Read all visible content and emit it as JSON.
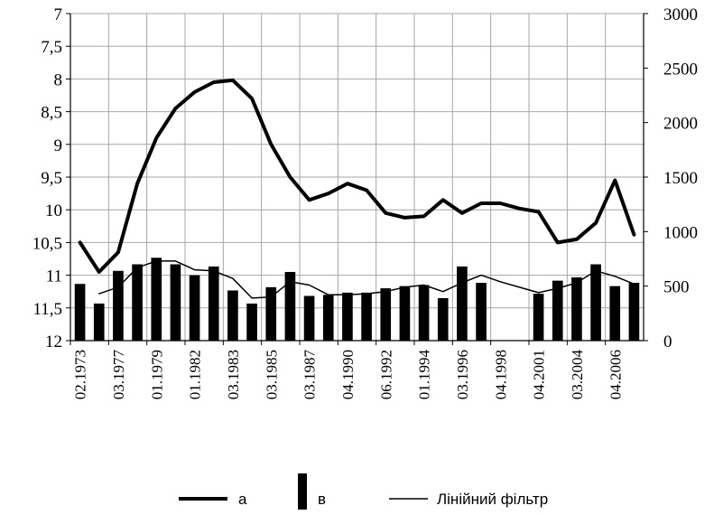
{
  "chart_data": {
    "type": "bar+line",
    "title": "",
    "xlabel": "",
    "ylabel_left": "",
    "ylabel_right": "",
    "x_tick_labels": [
      "02.1973",
      "03.1977",
      "01.1979",
      "01.1982",
      "03.1983",
      "03.1985",
      "03.1987",
      "04.1990",
      "06.1992",
      "01.1994",
      "03.1996",
      "04.1998",
      "04.2001",
      "03.2004",
      "04.2006"
    ],
    "left_axis": {
      "min": 7,
      "max": 12,
      "reversed": true,
      "step": 0.5,
      "tick_labels": [
        "7",
        "7,5",
        "8",
        "8,5",
        "9",
        "9,5",
        "10",
        "10,5",
        "11",
        "11,5",
        "12"
      ]
    },
    "right_axis": {
      "min": 0,
      "max": 3000,
      "step": 500,
      "tick_labels": [
        "0",
        "500",
        "1000",
        "1500",
        "2000",
        "2500",
        "3000"
      ]
    },
    "grid": true,
    "legend_position": "bottom",
    "series": [
      {
        "name": "а",
        "kind": "line",
        "axis": "left",
        "style": "thick",
        "values": [
          10.5,
          10.95,
          10.65,
          9.6,
          8.9,
          8.45,
          8.2,
          8.05,
          8.02,
          8.3,
          9.0,
          9.5,
          9.85,
          9.75,
          9.6,
          9.7,
          10.05,
          10.12,
          10.1,
          9.85,
          10.05,
          9.9,
          9.9,
          9.98,
          10.03,
          10.5,
          10.45,
          10.2,
          9.55,
          10.38
        ]
      },
      {
        "name": "в",
        "kind": "bar",
        "axis": "right",
        "values": [
          520,
          340,
          640,
          700,
          760,
          700,
          600,
          680,
          460,
          340,
          490,
          630,
          410,
          420,
          440,
          440,
          480,
          500,
          510,
          390,
          680,
          530,
          null,
          null,
          430,
          550,
          580,
          700,
          500,
          530
        ]
      },
      {
        "name": "Лінійний фільтр",
        "kind": "line",
        "axis": "right",
        "style": "thin",
        "values": [
          null,
          430,
          490,
          670,
          730,
          730,
          650,
          640,
          570,
          390,
          400,
          540,
          510,
          420,
          420,
          430,
          450,
          490,
          510,
          450,
          530,
          600,
          540,
          490,
          440,
          480,
          530,
          640,
          590,
          520
        ]
      }
    ]
  }
}
